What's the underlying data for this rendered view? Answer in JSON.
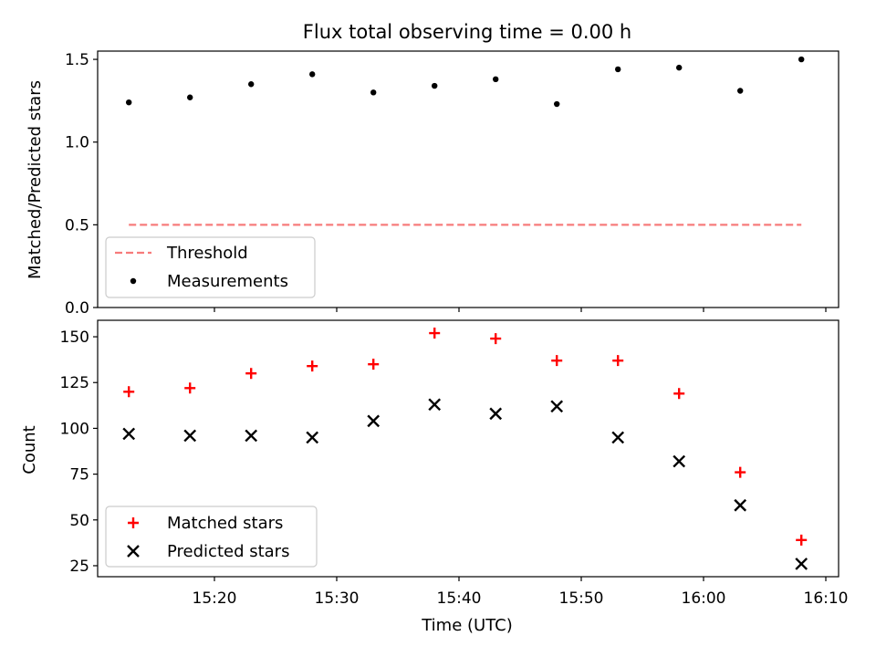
{
  "chart_data": [
    {
      "type": "scatter",
      "title": "Flux total observing time = 0.00 h",
      "xlabel": "",
      "ylabel": "Matched/Predicted stars",
      "ylim": [
        0,
        1.55
      ],
      "yticks": [
        "0.0",
        "0.5",
        "1.0",
        "1.5"
      ],
      "x": [
        "15:13",
        "15:18",
        "15:23",
        "15:28",
        "15:33",
        "15:38",
        "15:43",
        "15:48",
        "15:53",
        "15:58",
        "16:03",
        "16:08"
      ],
      "series": [
        {
          "name": "Threshold",
          "kind": "dashed-line",
          "color": "#f77b7b",
          "values": [
            0.5,
            0.5,
            0.5,
            0.5,
            0.5,
            0.5,
            0.5,
            0.5,
            0.5,
            0.5,
            0.5,
            0.5
          ]
        },
        {
          "name": "Measurements",
          "kind": "dot",
          "color": "#000000",
          "values": [
            1.24,
            1.27,
            1.35,
            1.41,
            1.3,
            1.34,
            1.38,
            1.23,
            1.44,
            1.45,
            1.31,
            1.5
          ]
        }
      ],
      "legend": "lower-left",
      "grid": false
    },
    {
      "type": "scatter",
      "title": "",
      "xlabel": "Time (UTC)",
      "ylabel": "Count",
      "ylim": [
        19,
        159
      ],
      "yticks": [
        "25",
        "50",
        "75",
        "100",
        "125",
        "150"
      ],
      "xticks": [
        "15:20",
        "15:30",
        "15:40",
        "15:50",
        "16:00",
        "16:10"
      ],
      "x": [
        "15:13",
        "15:18",
        "15:23",
        "15:28",
        "15:33",
        "15:38",
        "15:43",
        "15:48",
        "15:53",
        "15:58",
        "16:03",
        "16:08"
      ],
      "series": [
        {
          "name": "Matched stars",
          "marker": "+",
          "color": "#ff0000",
          "values": [
            120,
            122,
            130,
            134,
            135,
            152,
            149,
            137,
            137,
            119,
            76,
            39
          ]
        },
        {
          "name": "Predicted stars",
          "marker": "x",
          "color": "#000000",
          "values": [
            97,
            96,
            96,
            95,
            104,
            113,
            108,
            112,
            95,
            82,
            58,
            26
          ]
        }
      ],
      "legend": "lower-left",
      "grid": false
    }
  ]
}
